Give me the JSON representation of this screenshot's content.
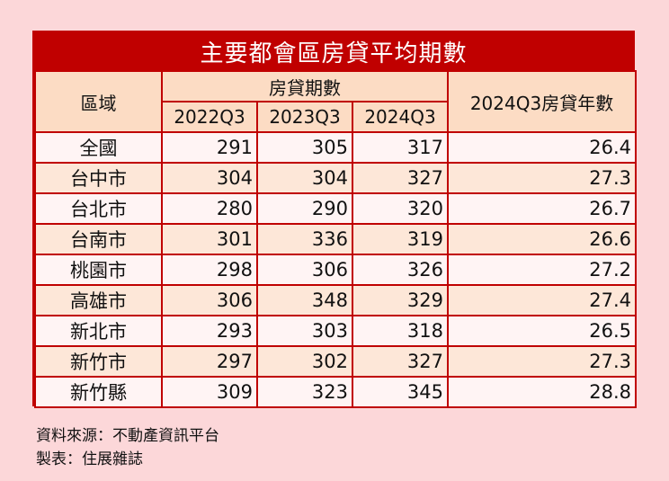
{
  "title": "主要都會區房貸平均期數",
  "headers": {
    "region": "區域",
    "group": "房貸期數",
    "years": [
      "2022Q3",
      "2023Q3",
      "2024Q3"
    ],
    "avg_years": "2024Q3房貸年數"
  },
  "rows": [
    {
      "region": "全國",
      "v2022": "291",
      "v2023": "305",
      "v2024": "317",
      "years": "26.4"
    },
    {
      "region": "台中市",
      "v2022": "304",
      "v2023": "304",
      "v2024": "327",
      "years": "27.3"
    },
    {
      "region": "台北市",
      "v2022": "280",
      "v2023": "290",
      "v2024": "320",
      "years": "26.7"
    },
    {
      "region": "台南市",
      "v2022": "301",
      "v2023": "336",
      "v2024": "319",
      "years": "26.6"
    },
    {
      "region": "桃園市",
      "v2022": "298",
      "v2023": "306",
      "v2024": "326",
      "years": "27.2"
    },
    {
      "region": "高雄市",
      "v2022": "306",
      "v2023": "348",
      "v2024": "329",
      "years": "27.4"
    },
    {
      "region": "新北市",
      "v2022": "293",
      "v2023": "303",
      "v2024": "318",
      "years": "26.5"
    },
    {
      "region": "新竹市",
      "v2022": "297",
      "v2023": "302",
      "v2024": "327",
      "years": "27.3"
    },
    {
      "region": "新竹縣",
      "v2022": "309",
      "v2023": "323",
      "v2024": "345",
      "years": "28.8"
    }
  ],
  "footer": {
    "source": "資料來源：不動產資訊平台",
    "credit": "製表：住展雜誌"
  },
  "colors": {
    "accent": "#c00000",
    "page_bg": "#fcd7d9",
    "header_bg": "#fcdcc4"
  }
}
